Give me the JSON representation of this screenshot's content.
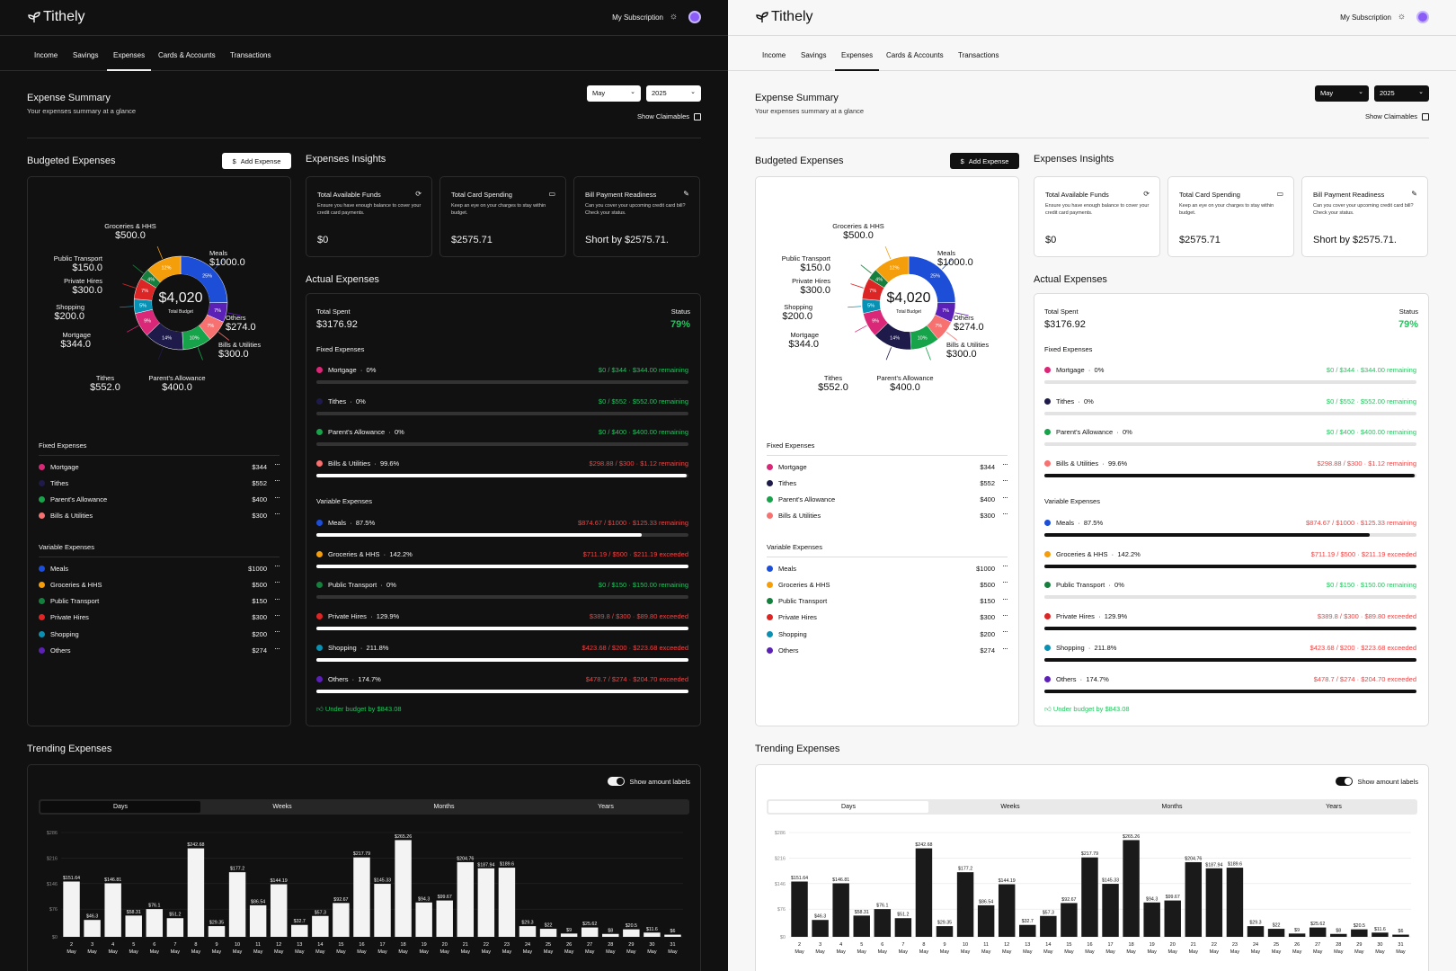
{
  "app": {
    "name": "Tithely",
    "subscription": "My Subscription"
  },
  "nav": {
    "tabs": [
      "Income",
      "Savings",
      "Expenses",
      "Cards & Accounts",
      "Transactions"
    ],
    "active": "Expenses"
  },
  "summary": {
    "title": "Expense Summary",
    "subtitle": "Your expenses summary at a glance",
    "month": "May",
    "year": "2025",
    "show_claimables": "Show Claimables"
  },
  "budgeted": {
    "title": "Budgeted Expenses",
    "add_button": "Add Expense",
    "donut": {
      "total": "$4,020",
      "total_label": "Total Budget",
      "slices": [
        {
          "name": "Meals",
          "value": 1000,
          "pct": "25%",
          "color": "#1d4ed8"
        },
        {
          "name": "Others",
          "value": 274,
          "pct": "7%",
          "color": "#5b21b6"
        },
        {
          "name": "Bills & Utilities",
          "value": 300,
          "pct": "7%",
          "color": "#f87171"
        },
        {
          "name": "Parent's Allowance",
          "value": 400,
          "pct": "10%",
          "color": "#16a34a"
        },
        {
          "name": "Tithes",
          "value": 552,
          "pct": "14%",
          "color": "#1e1b4b"
        },
        {
          "name": "Mortgage",
          "value": 344,
          "pct": "9%",
          "color": "#db2777"
        },
        {
          "name": "Shopping",
          "value": 200,
          "pct": "5%",
          "color": "#0891b2"
        },
        {
          "name": "Private Hires",
          "value": 300,
          "pct": "7%",
          "color": "#dc2626"
        },
        {
          "name": "Public Transport",
          "value": 150,
          "pct": "4%",
          "color": "#15803d"
        },
        {
          "name": "Groceries & HHS",
          "value": 500,
          "pct": "12%",
          "color": "#f59e0b"
        }
      ],
      "labels": {
        "groceries": {
          "name": "Groceries & HHS",
          "amount": "$500.0"
        },
        "meals": {
          "name": "Meals",
          "amount": "$1000.0"
        },
        "public": {
          "name": "Public Transport",
          "amount": "$150.0"
        },
        "private": {
          "name": "Private Hires",
          "amount": "$300.0"
        },
        "shopping": {
          "name": "Shopping",
          "amount": "$200.0"
        },
        "mortgage": {
          "name": "Mortgage",
          "amount": "$344.0"
        },
        "others": {
          "name": "Others",
          "amount": "$274.0"
        },
        "bills": {
          "name": "Bills & Utilities",
          "amount": "$300.0"
        },
        "tithes": {
          "name": "Tithes",
          "amount": "$552.0"
        },
        "parents": {
          "name": "Parent's Allowance",
          "amount": "$400.0"
        }
      }
    },
    "fixed_title": "Fixed Expenses",
    "fixed": [
      {
        "name": "Mortgage",
        "amount": "$344",
        "color": "#db2777"
      },
      {
        "name": "Tithes",
        "amount": "$552",
        "color": "#1e1b4b"
      },
      {
        "name": "Parent's Allowance",
        "amount": "$400",
        "color": "#16a34a"
      },
      {
        "name": "Bills & Utilities",
        "amount": "$300",
        "color": "#f87171"
      }
    ],
    "variable_title": "Variable Expenses",
    "variable": [
      {
        "name": "Meals",
        "amount": "$1000",
        "color": "#1d4ed8"
      },
      {
        "name": "Groceries & HHS",
        "amount": "$500",
        "color": "#f59e0b"
      },
      {
        "name": "Public Transport",
        "amount": "$150",
        "color": "#15803d"
      },
      {
        "name": "Private Hires",
        "amount": "$300",
        "color": "#dc2626"
      },
      {
        "name": "Shopping",
        "amount": "$200",
        "color": "#0891b2"
      },
      {
        "name": "Others",
        "amount": "$274",
        "color": "#5b21b6"
      }
    ]
  },
  "insights": {
    "title": "Expenses Insights",
    "cards": [
      {
        "title": "Total Available Funds",
        "desc": "Ensure you have enough balance to cover your credit card payments.",
        "value": "$0"
      },
      {
        "title": "Total Card Spending",
        "desc": "Keep an eye on your charges to stay within budget.",
        "value": "$2575.71"
      },
      {
        "title": "Bill Payment Readiness",
        "desc": "Can you cover your upcoming credit card bill? Check your status.",
        "value": "Short by $2575.71."
      }
    ]
  },
  "actual": {
    "title": "Actual Expenses",
    "total_label": "Total Spent",
    "total": "$3176.92",
    "status_label": "Status",
    "status": "79%",
    "fixed_title": "Fixed Expenses",
    "fixed": [
      {
        "name": "Mortgage",
        "pct": "0%",
        "spent": "$0 / $344",
        "remain": "$344.00 remaining",
        "over": false,
        "fill": 0,
        "color": "#db2777"
      },
      {
        "name": "Tithes",
        "pct": "0%",
        "spent": "$0 / $552",
        "remain": "$552.00 remaining",
        "over": false,
        "fill": 0,
        "color": "#1e1b4b"
      },
      {
        "name": "Parent's Allowance",
        "pct": "0%",
        "spent": "$0 / $400",
        "remain": "$400.00 remaining",
        "over": false,
        "fill": 0,
        "color": "#16a34a"
      },
      {
        "name": "Bills & Utilities",
        "pct": "99.6%",
        "spent": "$298.88 / $300",
        "remain": "$1.12 remaining",
        "over": true,
        "fill": 99.6,
        "color": "#f87171"
      }
    ],
    "variable_title": "Variable Expenses",
    "variable": [
      {
        "name": "Meals",
        "pct": "87.5%",
        "spent": "$874.67 / $1000",
        "remain": "$125.33 remaining",
        "over": true,
        "fill": 87.5,
        "color": "#1d4ed8"
      },
      {
        "name": "Groceries & HHS",
        "pct": "142.2%",
        "spent": "$711.19 / $500",
        "remain": "$211.19 exceeded",
        "over": true,
        "fill": 100,
        "color": "#f59e0b"
      },
      {
        "name": "Public Transport",
        "pct": "0%",
        "spent": "$0 / $150",
        "remain": "$150.00 remaining",
        "over": false,
        "fill": 0,
        "color": "#15803d"
      },
      {
        "name": "Private Hires",
        "pct": "129.9%",
        "spent": "$389.8 / $300",
        "remain": "$89.80 exceeded",
        "over": true,
        "fill": 100,
        "color": "#dc2626"
      },
      {
        "name": "Shopping",
        "pct": "211.8%",
        "spent": "$423.68 / $200",
        "remain": "$223.68 exceeded",
        "over": true,
        "fill": 100,
        "color": "#0891b2"
      },
      {
        "name": "Others",
        "pct": "174.7%",
        "spent": "$478.7 / $274",
        "remain": "$204.70 exceeded",
        "over": true,
        "fill": 100,
        "color": "#5b21b6"
      }
    ],
    "under_budget": "Under budget by $843.08"
  },
  "trending": {
    "title": "Trending Expenses",
    "toggle_label": "Show amount labels",
    "periods": [
      "Days",
      "Weeks",
      "Months",
      "Years"
    ],
    "active_period": "Days"
  },
  "chart_data": {
    "type": "bar",
    "categories": [
      "2",
      "3",
      "4",
      "5",
      "6",
      "7",
      "8",
      "9",
      "10",
      "11",
      "12",
      "13",
      "14",
      "15",
      "16",
      "17",
      "18",
      "19",
      "20",
      "21",
      "22",
      "23",
      "24",
      "25",
      "26",
      "27",
      "28",
      "29",
      "30",
      "31"
    ],
    "category_sublabel": "May",
    "values": [
      151.64,
      46.3,
      146.81,
      58.31,
      76.1,
      51.2,
      242.68,
      29.35,
      177.2,
      86.54,
      144.19,
      32.7,
      57.3,
      92.67,
      217.79,
      145.33,
      265.26,
      94.3,
      99.67,
      204.76,
      187.94,
      189.6,
      29.3,
      22,
      9,
      25.62,
      8,
      20.5,
      11.6,
      6
    ],
    "data_labels": [
      "$151.64",
      "$46.3",
      "$146.81",
      "$58.31",
      "$76.1",
      "$51.2",
      "$242.68",
      "$29.35",
      "$177.2",
      "$86.54",
      "$144.19",
      "$32.7",
      "$57.3",
      "$92.67",
      "$217.79",
      "$145.33",
      "$265.26",
      "$94.3",
      "$99.67",
      "$204.76",
      "$187.94",
      "$189.6",
      "$29.3",
      "$22",
      "$9",
      "$25.62",
      "$8",
      "$20.5",
      "$11.6",
      "$6"
    ],
    "y_ticks": [
      "$0",
      "$76",
      "$146",
      "$216",
      "$286"
    ],
    "ylim": [
      0,
      286
    ]
  }
}
